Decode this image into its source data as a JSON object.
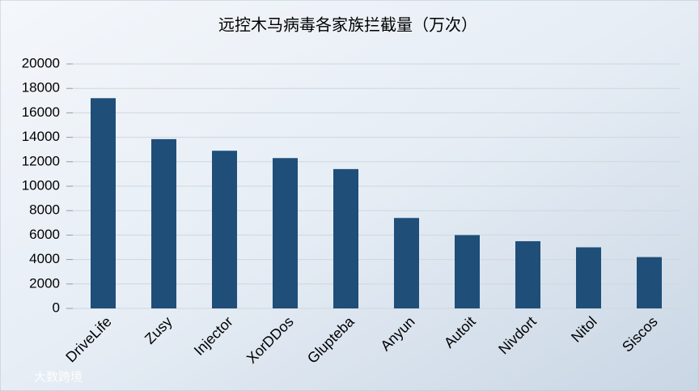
{
  "chart_data": {
    "type": "bar",
    "title": "远控木马病毒各家族拦截量（万次）",
    "categories": [
      "DriveLife",
      "Zusy",
      "Injector",
      "XorDDos",
      "Glupteba",
      "Anyun",
      "Autoit",
      "Nivdort",
      "Nitol",
      "Siscos"
    ],
    "values": [
      17200,
      13850,
      12900,
      12300,
      11400,
      7400,
      6000,
      5500,
      5000,
      4200
    ],
    "color": "#1f4e79",
    "ylim": [
      0,
      20000
    ],
    "yticks": [
      0,
      2000,
      4000,
      6000,
      8000,
      10000,
      12000,
      14000,
      16000,
      18000,
      20000
    ],
    "grid": true,
    "watermark": "大数跨境"
  }
}
